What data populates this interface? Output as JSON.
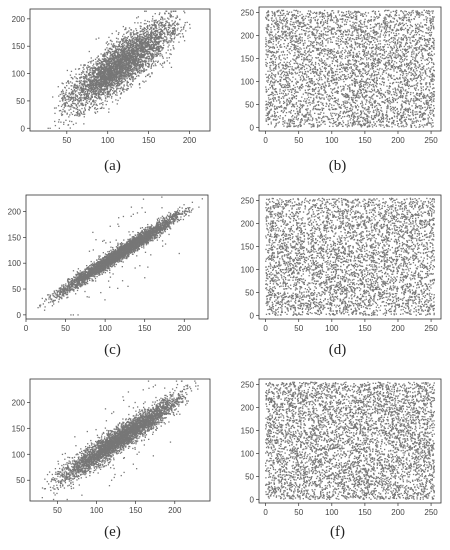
{
  "chart_data": [
    {
      "panel": "a",
      "type": "scatter",
      "caption": "(a)",
      "title": "",
      "xlabel": "",
      "ylabel": "",
      "xlim": [
        5,
        225
      ],
      "ylim": [
        -5,
        218
      ],
      "xticks": [
        50,
        100,
        150,
        200
      ],
      "yticks": [
        0,
        50,
        100,
        150,
        200
      ],
      "distribution": "linear-correlated",
      "trend": {
        "slope": 1.0,
        "intercept": 0
      },
      "x_range": [
        20,
        210
      ],
      "spread": 22,
      "point_count": 4000,
      "marker_color": "#777777",
      "grid": false
    },
    {
      "panel": "b",
      "type": "scatter",
      "caption": "(b)",
      "title": "",
      "xlabel": "",
      "ylabel": "",
      "xlim": [
        -10,
        265
      ],
      "ylim": [
        -8,
        262
      ],
      "xticks": [
        0,
        50,
        100,
        150,
        200,
        250
      ],
      "yticks": [
        0,
        50,
        100,
        150,
        200,
        250
      ],
      "distribution": "uniform",
      "x_range": [
        0,
        255
      ],
      "y_range": [
        0,
        255
      ],
      "point_count": 4500,
      "marker_color": "#777777",
      "grid": false
    },
    {
      "panel": "c",
      "type": "scatter",
      "caption": "(c)",
      "title": "",
      "xlabel": "",
      "ylabel": "",
      "xlim": [
        0,
        230
      ],
      "ylim": [
        -8,
        232
      ],
      "xticks": [
        0,
        50,
        100,
        150,
        200
      ],
      "yticks": [
        0,
        50,
        100,
        150,
        200
      ],
      "distribution": "linear-correlated",
      "trend": {
        "slope": 1.0,
        "intercept": 0
      },
      "x_range": [
        8,
        225
      ],
      "spread": 7,
      "outlier_fraction": 0.02,
      "point_count": 4000,
      "marker_color": "#777777",
      "grid": false
    },
    {
      "panel": "d",
      "type": "scatter",
      "caption": "(d)",
      "title": "",
      "xlabel": "",
      "ylabel": "",
      "xlim": [
        -10,
        265
      ],
      "ylim": [
        -8,
        262
      ],
      "xticks": [
        0,
        50,
        100,
        150,
        200,
        250
      ],
      "yticks": [
        0,
        50,
        100,
        150,
        200,
        250
      ],
      "distribution": "uniform",
      "x_range": [
        0,
        255
      ],
      "y_range": [
        0,
        255
      ],
      "point_count": 4500,
      "marker_color": "#777777",
      "grid": false
    },
    {
      "panel": "e",
      "type": "scatter",
      "caption": "(e)",
      "title": "",
      "xlabel": "",
      "ylabel": "",
      "xlim": [
        15,
        245
      ],
      "ylim": [
        10,
        245
      ],
      "xticks": [
        50,
        100,
        150,
        200
      ],
      "yticks": [
        50,
        100,
        150,
        200
      ],
      "distribution": "linear-correlated",
      "trend": {
        "slope": 1.0,
        "intercept": 0
      },
      "x_range": [
        22,
        238
      ],
      "spread": 12,
      "outlier_fraction": 0.015,
      "point_count": 4000,
      "marker_color": "#777777",
      "grid": false
    },
    {
      "panel": "f",
      "type": "scatter",
      "caption": "(f)",
      "title": "",
      "xlabel": "",
      "ylabel": "",
      "xlim": [
        -10,
        265
      ],
      "ylim": [
        -8,
        262
      ],
      "xticks": [
        0,
        50,
        100,
        150,
        200,
        250
      ],
      "yticks": [
        0,
        50,
        100,
        150,
        200,
        250
      ],
      "distribution": "uniform",
      "x_range": [
        0,
        255
      ],
      "y_range": [
        0,
        255
      ],
      "point_count": 5000,
      "marker_color": "#777777",
      "grid": false
    }
  ]
}
